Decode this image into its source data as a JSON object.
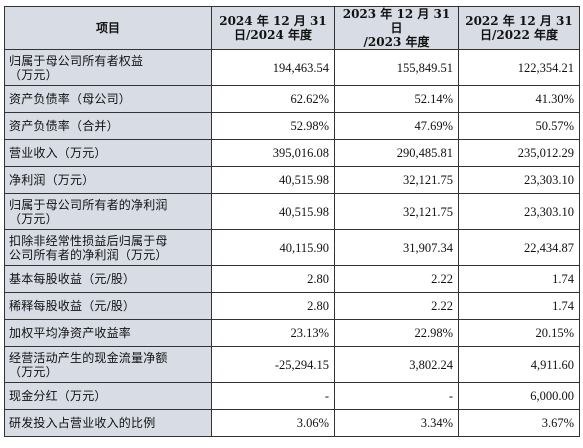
{
  "table": {
    "headers": [
      [
        "项目"
      ],
      [
        "2024 年 12 月 31",
        "日/2024 年度"
      ],
      [
        "2023 年 12 月 31 日",
        "/2023 年度"
      ],
      [
        "2022 年 12 月 31",
        "日/2022 年度"
      ]
    ],
    "rows": [
      {
        "label": [
          "归属于母公司所有者权益",
          "（万元）"
        ],
        "values": [
          "194,463.54",
          "155,849.51",
          "122,354.21"
        ]
      },
      {
        "label": [
          "资产负债率（母公司）"
        ],
        "values": [
          "62.62%",
          "52.14%",
          "41.30%"
        ]
      },
      {
        "label": [
          "资产负债率（合并）"
        ],
        "values": [
          "52.98%",
          "47.69%",
          "50.57%"
        ]
      },
      {
        "label": [
          "营业收入（万元）"
        ],
        "values": [
          "395,016.08",
          "290,485.81",
          "235,012.29"
        ]
      },
      {
        "label": [
          "净利润（万元）"
        ],
        "values": [
          "40,515.98",
          "32,121.75",
          "23,303.10"
        ]
      },
      {
        "label": [
          "归属于母公司所有者的净利润",
          "（万元）"
        ],
        "values": [
          "40,515.98",
          "32,121.75",
          "23,303.10"
        ]
      },
      {
        "label": [
          "扣除非经常性损益后归属于母",
          "公司所有者的净利润（万元）"
        ],
        "values": [
          "40,115.90",
          "31,907.34",
          "22,434.87"
        ]
      },
      {
        "label": [
          "基本每股收益（元/股）"
        ],
        "values": [
          "2.80",
          "2.22",
          "1.74"
        ]
      },
      {
        "label": [
          "稀释每股收益（元/股）"
        ],
        "values": [
          "2.80",
          "2.22",
          "1.74"
        ]
      },
      {
        "label": [
          "加权平均净资产收益率"
        ],
        "values": [
          "23.13%",
          "22.98%",
          "20.15%"
        ]
      },
      {
        "label": [
          "经营活动产生的现金流量净额",
          "（万元）"
        ],
        "values": [
          "-25,294.15",
          "3,802.24",
          "4,911.60"
        ]
      },
      {
        "label": [
          "现金分红（万元）"
        ],
        "values": [
          "-",
          "-",
          "6,000.00"
        ]
      },
      {
        "label": [
          "研发投入占营业收入的比例"
        ],
        "values": [
          "3.06%",
          "3.34%",
          "3.67%"
        ]
      }
    ]
  }
}
